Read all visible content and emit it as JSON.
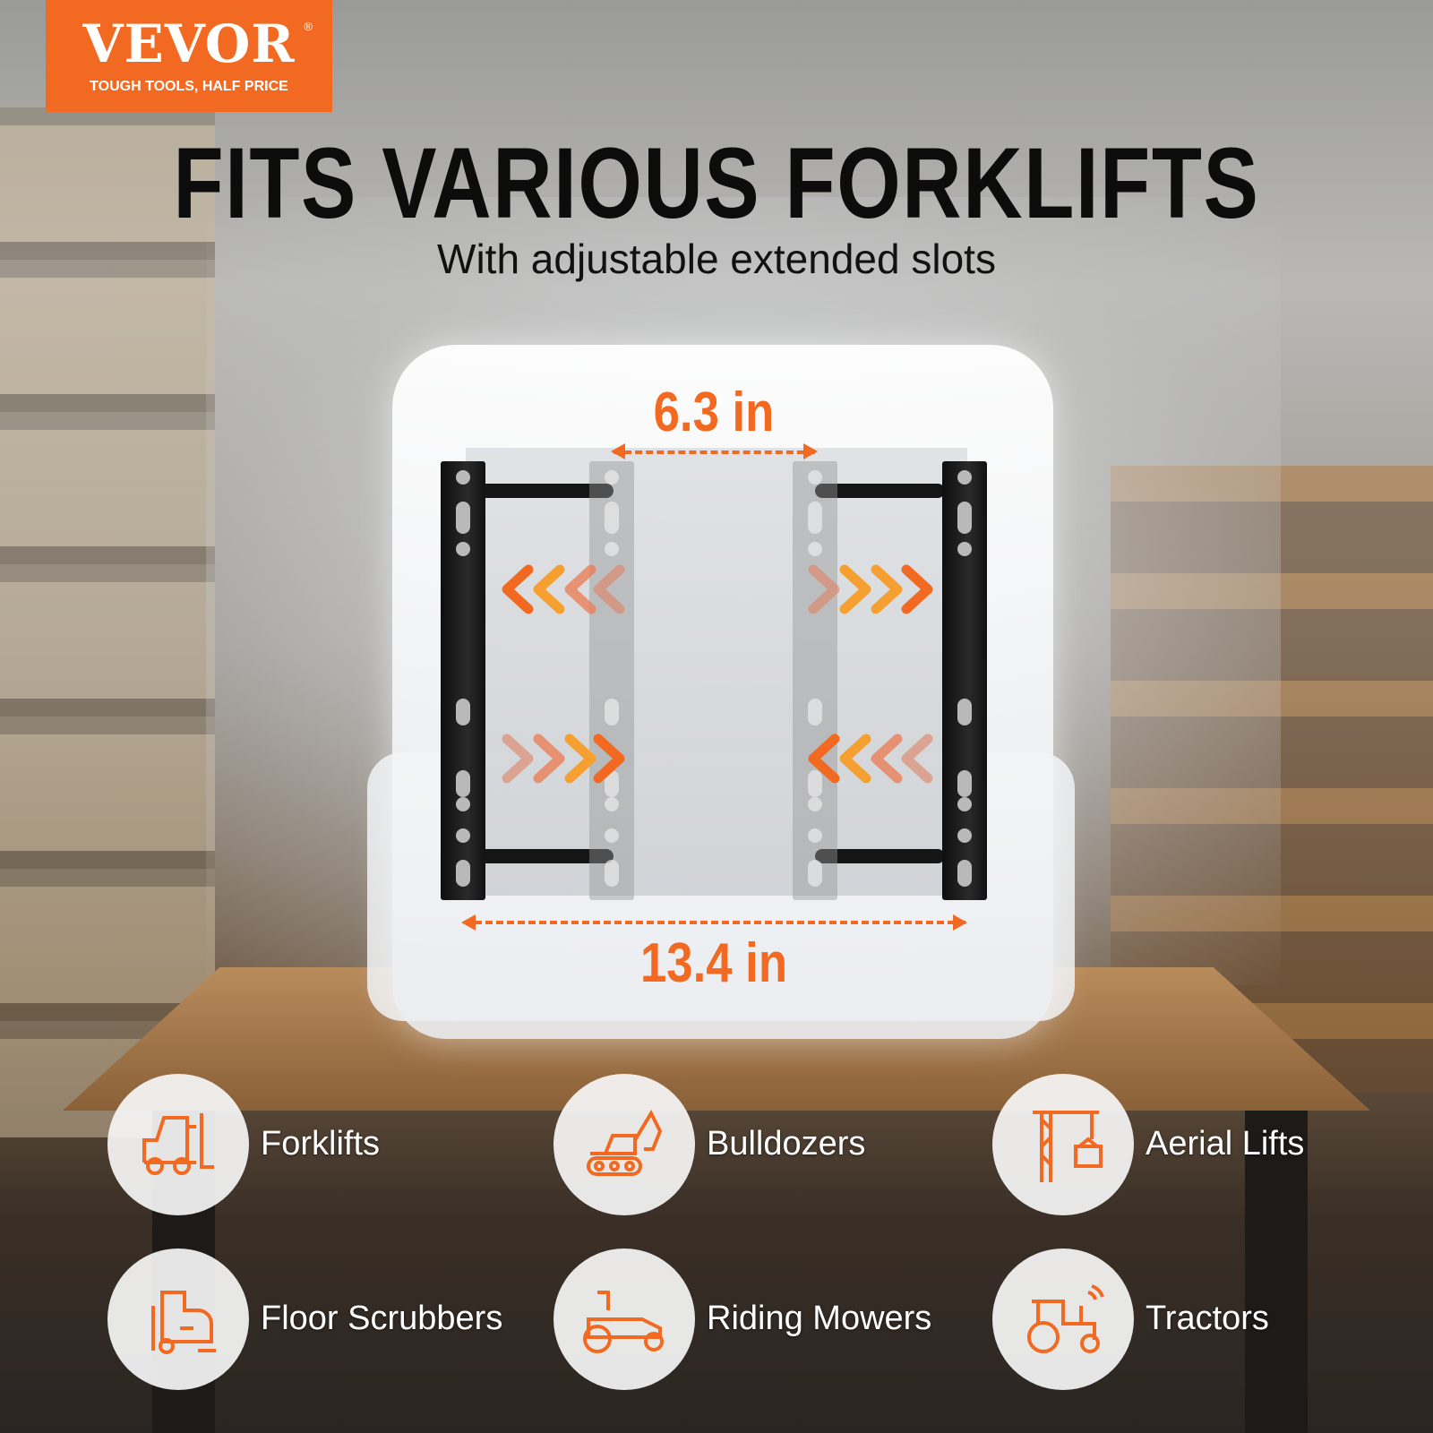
{
  "brand": {
    "name": "VEVOR",
    "registered": "®",
    "tagline": "TOUGH TOOLS, HALF PRICE",
    "color": "#f26a21"
  },
  "headline": "FITS VARIOUS FORKLIFTS",
  "subheadline": "With adjustable extended slots",
  "dimensions": {
    "inner": "6.3 in",
    "outer": "13.4 in"
  },
  "accent_color": "#f26a21",
  "applications": [
    {
      "label": "Forklifts",
      "icon": "forklift-icon"
    },
    {
      "label": "Bulldozers",
      "icon": "excavator-icon"
    },
    {
      "label": "Aerial Lifts",
      "icon": "crane-icon"
    },
    {
      "label": "Floor Scrubbers",
      "icon": "floor-scrubber-icon"
    },
    {
      "label": "Riding Mowers",
      "icon": "riding-mower-icon"
    },
    {
      "label": "Tractors",
      "icon": "tractor-icon"
    }
  ]
}
